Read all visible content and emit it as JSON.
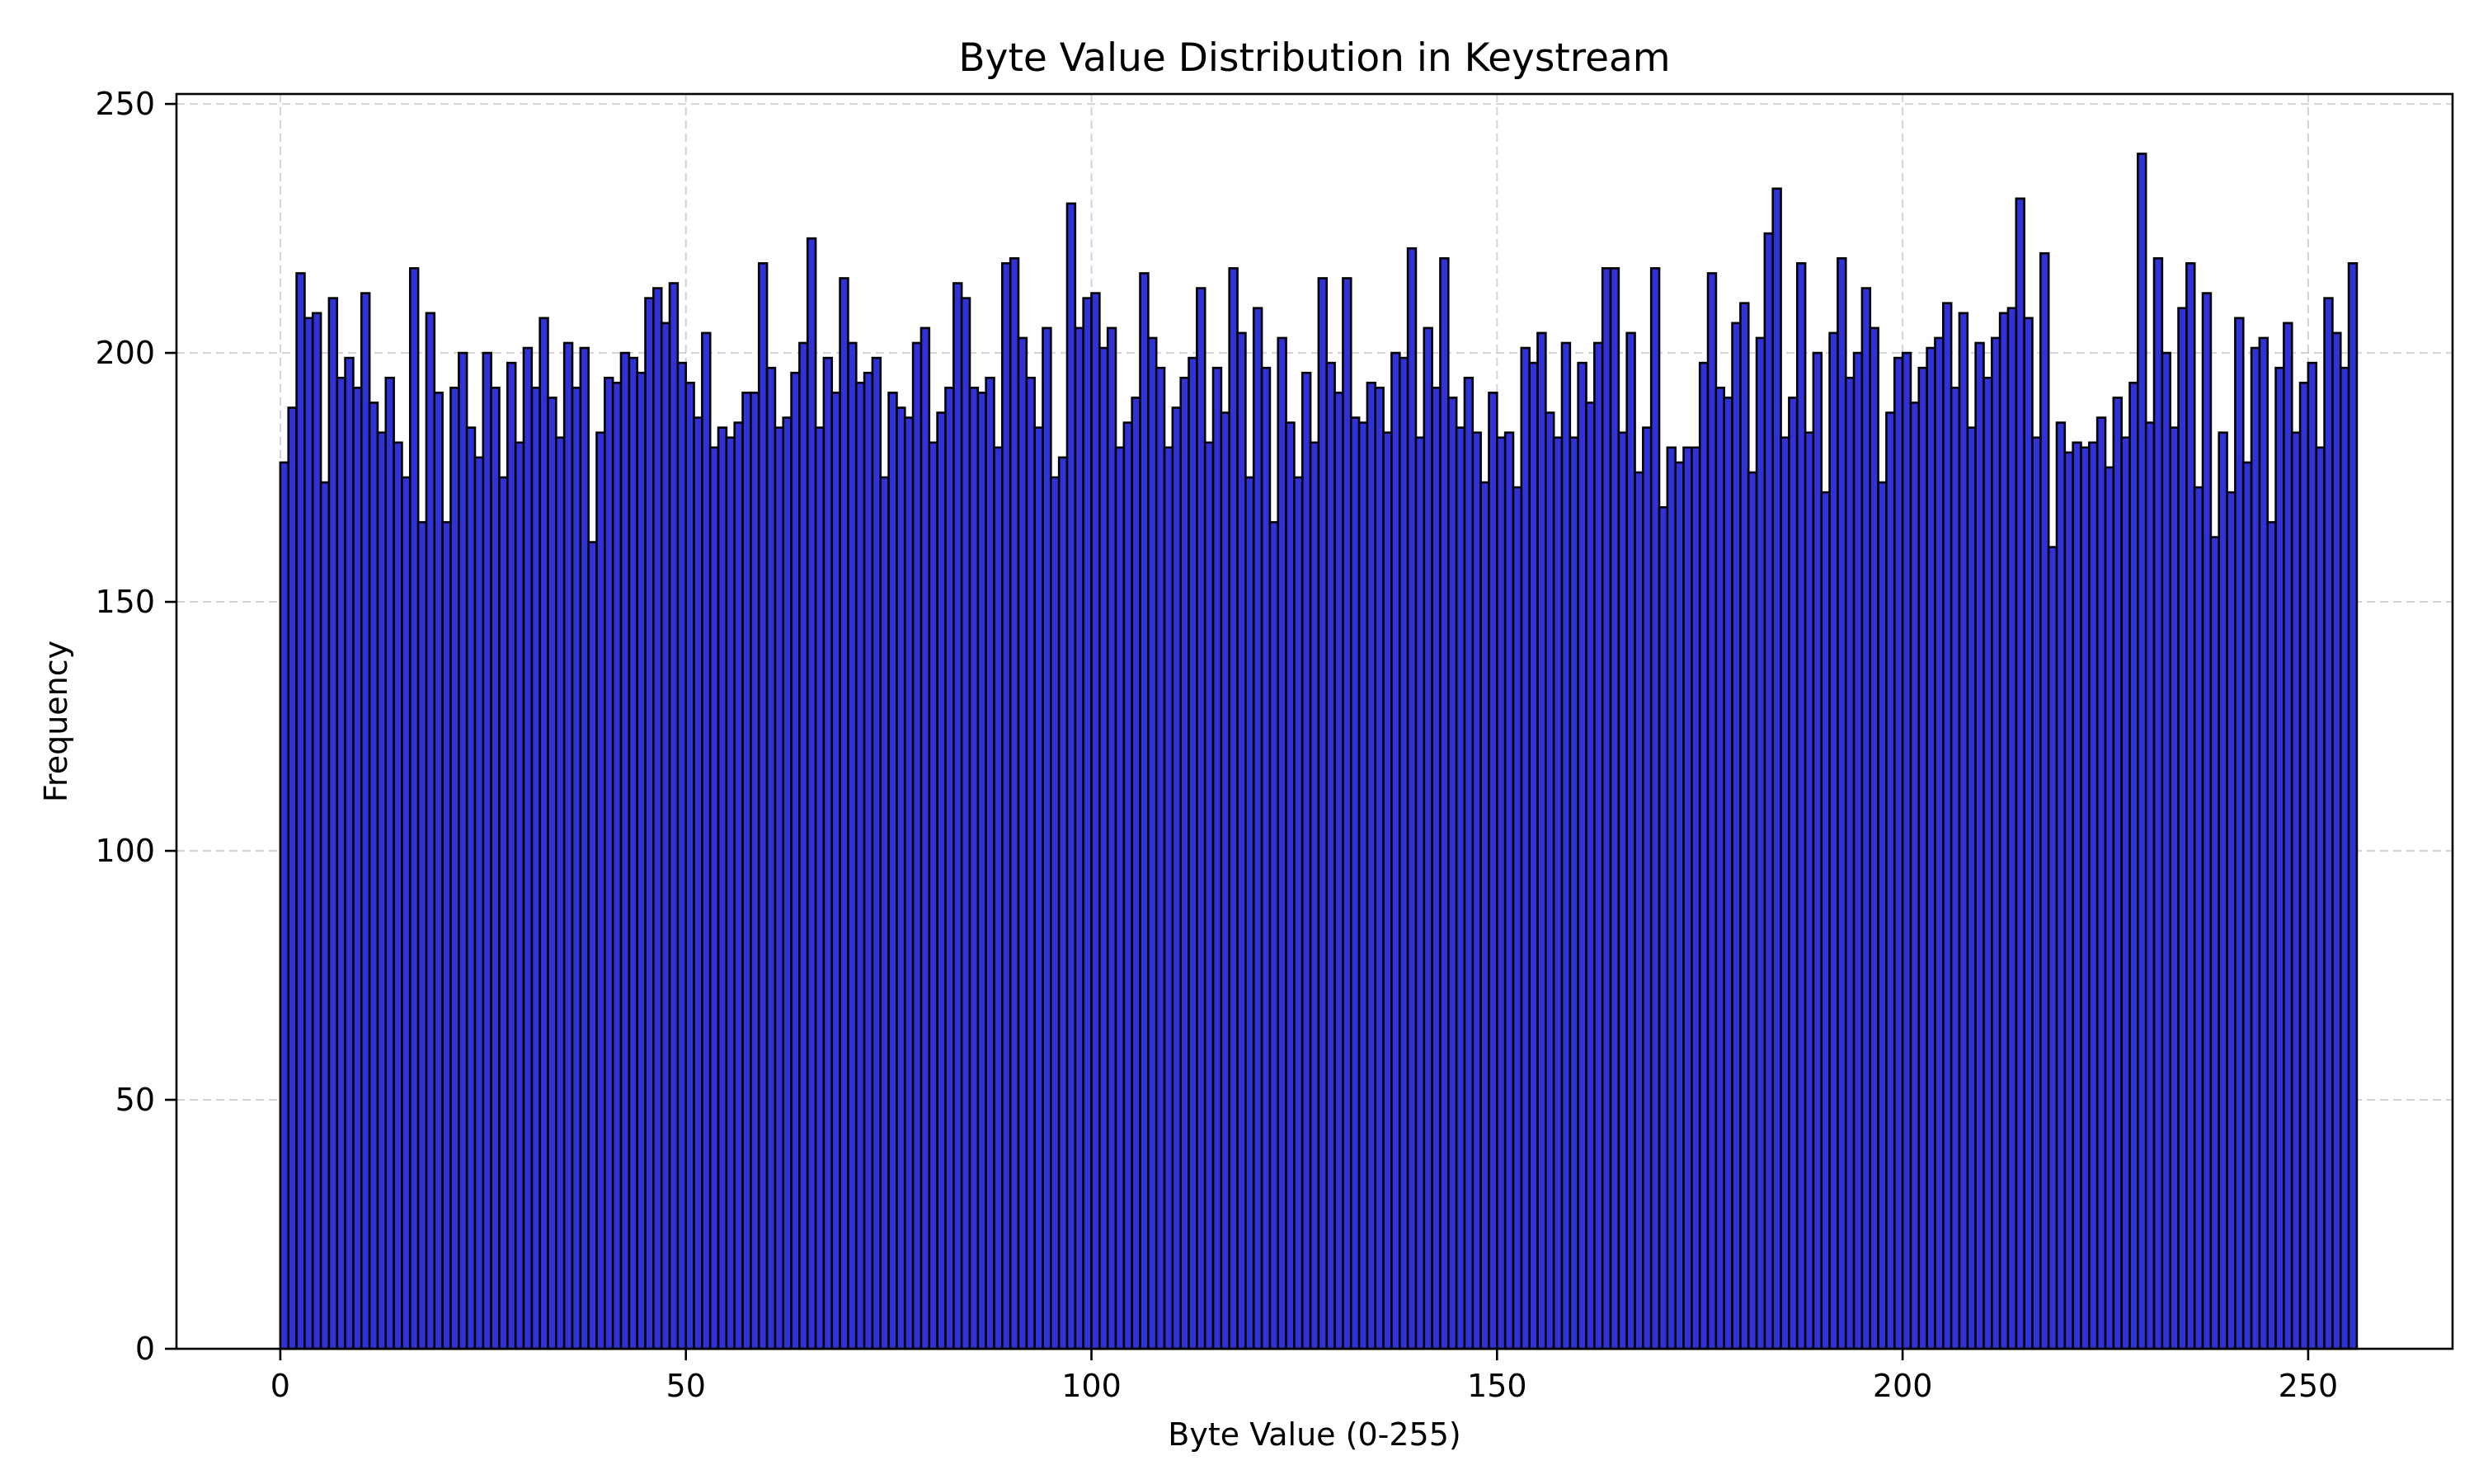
{
  "chart_data": {
    "type": "bar",
    "title": "Byte Value Distribution in Keystream",
    "xlabel": "Byte Value (0-255)",
    "ylabel": "Frequency",
    "xlim": [
      -12.8,
      267.8
    ],
    "ylim": [
      0,
      252
    ],
    "xticks": [
      0,
      50,
      100,
      150,
      200,
      250
    ],
    "yticks": [
      0,
      50,
      100,
      150,
      200,
      250
    ],
    "grid": true,
    "bar_color": "#3131d8",
    "edge_color": "#000000",
    "categories": [
      0,
      1,
      2,
      3,
      4,
      5,
      6,
      7,
      8,
      9,
      10,
      11,
      12,
      13,
      14,
      15,
      16,
      17,
      18,
      19,
      20,
      21,
      22,
      23,
      24,
      25,
      26,
      27,
      28,
      29,
      30,
      31,
      32,
      33,
      34,
      35,
      36,
      37,
      38,
      39,
      40,
      41,
      42,
      43,
      44,
      45,
      46,
      47,
      48,
      49,
      50,
      51,
      52,
      53,
      54,
      55,
      56,
      57,
      58,
      59,
      60,
      61,
      62,
      63,
      64,
      65,
      66,
      67,
      68,
      69,
      70,
      71,
      72,
      73,
      74,
      75,
      76,
      77,
      78,
      79,
      80,
      81,
      82,
      83,
      84,
      85,
      86,
      87,
      88,
      89,
      90,
      91,
      92,
      93,
      94,
      95,
      96,
      97,
      98,
      99,
      100,
      101,
      102,
      103,
      104,
      105,
      106,
      107,
      108,
      109,
      110,
      111,
      112,
      113,
      114,
      115,
      116,
      117,
      118,
      119,
      120,
      121,
      122,
      123,
      124,
      125,
      126,
      127,
      128,
      129,
      130,
      131,
      132,
      133,
      134,
      135,
      136,
      137,
      138,
      139,
      140,
      141,
      142,
      143,
      144,
      145,
      146,
      147,
      148,
      149,
      150,
      151,
      152,
      153,
      154,
      155,
      156,
      157,
      158,
      159,
      160,
      161,
      162,
      163,
      164,
      165,
      166,
      167,
      168,
      169,
      170,
      171,
      172,
      173,
      174,
      175,
      176,
      177,
      178,
      179,
      180,
      181,
      182,
      183,
      184,
      185,
      186,
      187,
      188,
      189,
      190,
      191,
      192,
      193,
      194,
      195,
      196,
      197,
      198,
      199,
      200,
      201,
      202,
      203,
      204,
      205,
      206,
      207,
      208,
      209,
      210,
      211,
      212,
      213,
      214,
      215,
      216,
      217,
      218,
      219,
      220,
      221,
      222,
      223,
      224,
      225,
      226,
      227,
      228,
      229,
      230,
      231,
      232,
      233,
      234,
      235,
      236,
      237,
      238,
      239,
      240,
      241,
      242,
      243,
      244,
      245,
      246,
      247,
      248,
      249,
      250,
      251,
      252,
      253,
      254,
      255
    ],
    "values": [
      178,
      189,
      216,
      207,
      208,
      174,
      211,
      195,
      199,
      193,
      212,
      190,
      184,
      195,
      182,
      175,
      217,
      166,
      208,
      192,
      166,
      193,
      200,
      185,
      179,
      200,
      193,
      175,
      198,
      182,
      201,
      193,
      207,
      191,
      183,
      202,
      193,
      201,
      162,
      184,
      195,
      194,
      200,
      199,
      196,
      211,
      213,
      206,
      214,
      198,
      194,
      187,
      204,
      181,
      185,
      183,
      186,
      192,
      192,
      218,
      197,
      185,
      187,
      196,
      202,
      223,
      185,
      199,
      192,
      215,
      202,
      194,
      196,
      199,
      175,
      192,
      189,
      187,
      202,
      205,
      182,
      188,
      193,
      214,
      211,
      193,
      192,
      195,
      181,
      218,
      219,
      203,
      195,
      185,
      205,
      175,
      179,
      230,
      205,
      211,
      212,
      201,
      205,
      181,
      186,
      191,
      216,
      203,
      197,
      181,
      189,
      195,
      199,
      213,
      182,
      197,
      188,
      217,
      204,
      175,
      209,
      197,
      166,
      203,
      186,
      175,
      196,
      182,
      215,
      198,
      192,
      215,
      187,
      186,
      194,
      193,
      184,
      200,
      199,
      221,
      183,
      205,
      193,
      219,
      191,
      185,
      195,
      184,
      174,
      192,
      183,
      184,
      173,
      201,
      198,
      204,
      188,
      183,
      202,
      183,
      198,
      190,
      202,
      217,
      217,
      184,
      204,
      176,
      185,
      217,
      169,
      181,
      178,
      181,
      181,
      198,
      216,
      193,
      191,
      206,
      210,
      176,
      203,
      224,
      233,
      183,
      191,
      218,
      184,
      200,
      172,
      204,
      219,
      195,
      200,
      213,
      205,
      174,
      188,
      199,
      200,
      190,
      197,
      201,
      203,
      210,
      193,
      208,
      185,
      202,
      195,
      203,
      208,
      209,
      231,
      207,
      183,
      220,
      161,
      186,
      180,
      182,
      181,
      182,
      187,
      177,
      191,
      183,
      194,
      240,
      186,
      219,
      200,
      185,
      209,
      218,
      173,
      212,
      163,
      184,
      172,
      207,
      178,
      201,
      203,
      166,
      197,
      206,
      184,
      194,
      198,
      181,
      211,
      204,
      197,
      218
    ]
  }
}
